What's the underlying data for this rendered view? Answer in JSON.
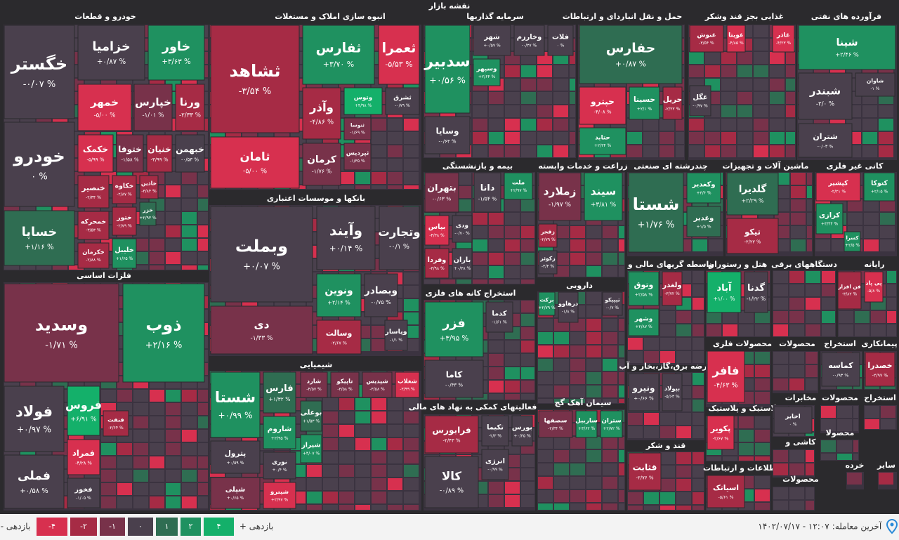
{
  "header": {
    "title": "نقشه بازار"
  },
  "sectors": [
    {
      "title": "خودرو و قطعات",
      "tiles": [
        {
          "name": "خگستر",
          "change": "-۰/۰۷ %"
        },
        {
          "name": "خودرو",
          "change": "۰ %"
        },
        {
          "name": "خساپا",
          "change": "+۱/۱۶ %"
        },
        {
          "name": "خزامیا",
          "change": "+۰/۸۷ %"
        },
        {
          "name": "خاور",
          "change": "+۳/۶۳ %"
        },
        {
          "name": "خمهر",
          "change": "-۵/۰۰ %"
        },
        {
          "name": "خپارس",
          "change": "-۱/۰۱ %"
        },
        {
          "name": "ورنا",
          "change": "-۲/۳۳ %"
        },
        {
          "name": "خکمک",
          "change": "-۵/۹۹ %"
        },
        {
          "name": "ختوقا",
          "change": "-۱/۵۸ %"
        },
        {
          "name": "خنیان",
          "change": "-۳/۹۹ %"
        },
        {
          "name": "خبهمن",
          "change": "-۰/۵۳ %"
        },
        {
          "name": "خنصیر",
          "change": "-۲/۳۴ %"
        },
        {
          "name": "خکاوه",
          "change": "-۲/۸۷ %"
        },
        {
          "name": "خاذین",
          "change": "-۳/۸۴ %"
        },
        {
          "name": "خمحرکه",
          "change": "-۳/۵۳ %"
        },
        {
          "name": "ختور",
          "change": "-۲/۷۹ %"
        },
        {
          "name": "خزر",
          "change": "+۲/۹۳ %"
        },
        {
          "name": "خکرمان",
          "change": "-۲/۸۸ %"
        },
        {
          "name": "خلیبل",
          "change": "+۱/۶۵ %"
        }
      ]
    },
    {
      "title": "فلزات اساسی",
      "tiles": [
        {
          "name": "وسدید",
          "change": "-۱/۷۱ %"
        },
        {
          "name": "ذوب",
          "change": "+۲/۱۶ %"
        },
        {
          "name": "فولاد",
          "change": "+۰/۹۷ %"
        },
        {
          "name": "فملی",
          "change": "+۰/۵۸ %"
        },
        {
          "name": "فروس",
          "change": "+۶/۹۱ %"
        },
        {
          "name": "فنفت",
          "change": "-۲/۶۴ %"
        },
        {
          "name": "فمراد",
          "change": "-۴/۲۸ %"
        },
        {
          "name": "فخوز",
          "change": "-۱/۰۵ %"
        }
      ]
    },
    {
      "title": "انبوه سازی املاک و مستغلات",
      "tiles": [
        {
          "name": "ثشاهد",
          "change": "-۳/۵۴ %"
        },
        {
          "name": "ثامان",
          "change": "-۵/۰۰ %"
        },
        {
          "name": "ثفارس",
          "change": "+۳/۷۰ %"
        },
        {
          "name": "ثعمرا",
          "change": "-۵/۵۳ %"
        },
        {
          "name": "وآذر",
          "change": "-۴/۸۶ %"
        },
        {
          "name": "وتوس",
          "change": "+۴/۹۸ %"
        },
        {
          "name": "ثشرق",
          "change": "-۰/۷۹ %"
        },
        {
          "name": "ثنوسا",
          "change": "-۱/۶۹ %"
        },
        {
          "name": "کرمان",
          "change": "-۱/۷۶ %"
        },
        {
          "name": "ثپردیس",
          "change": "-۱/۳۵ %"
        }
      ]
    },
    {
      "title": "بانکها و موسسات اعتباری",
      "tiles": [
        {
          "name": "وبملت",
          "change": "+۰/۰۷ %"
        },
        {
          "name": "دی",
          "change": "-۱/۳۳ %"
        },
        {
          "name": "وآیند",
          "change": "+۰/۱۴ %"
        },
        {
          "name": "وتجارت",
          "change": "-۰/۱ %"
        },
        {
          "name": "ونوین",
          "change": "+۲/۱۴ %"
        },
        {
          "name": "وبصادر",
          "change": "-۰/۷۵ %"
        },
        {
          "name": "وسالت",
          "change": "-۲/۶۷ %"
        },
        {
          "name": "وپاسار",
          "change": "-۱/۱ %"
        }
      ]
    },
    {
      "title": "شیمیایی",
      "tiles": [
        {
          "name": "شستا",
          "change": "+۰/۹۹ %"
        },
        {
          "name": "پترول",
          "change": "+۰/۵۹ %"
        },
        {
          "name": "شپلی",
          "change": "+۰/۶۵ %"
        },
        {
          "name": "فارس",
          "change": "+۱/۳۲ %"
        },
        {
          "name": "شاروم",
          "change": "+۲/۹۵ %"
        },
        {
          "name": "نوری",
          "change": "+۰/۴ %"
        },
        {
          "name": "شپترو",
          "change": "+۲/۹۷ %"
        },
        {
          "name": "شارد",
          "change": "-۴/۵۷ %"
        },
        {
          "name": "تاپیکو",
          "change": "-۳/۵۸ %"
        },
        {
          "name": "شپدیس",
          "change": "-۳/۵۸ %"
        },
        {
          "name": "شغلاب",
          "change": "-۳/۹۹ %"
        },
        {
          "name": "بوعلی",
          "change": "+۱/۵۳ %"
        },
        {
          "name": "شیراز",
          "change": "+۴/۰۷ %"
        }
      ]
    },
    {
      "title": "سرمایه گذاریها",
      "tiles": [
        {
          "name": "سدبیر",
          "change": "+۰/۵۶ %"
        },
        {
          "name": "شهر",
          "change": "+۰/۵۷ %"
        },
        {
          "name": "وخارزم",
          "change": "-۰/۳۷ %"
        },
        {
          "name": "فلات",
          "change": "۰ %"
        },
        {
          "name": "وسپهر",
          "change": "+۲/۶۴ %"
        },
        {
          "name": "وسایا",
          "change": "-۰/۶۴ %"
        }
      ]
    },
    {
      "title": "بیمه و بازنشستگی",
      "tiles": [
        {
          "name": "بتهران",
          "change": "-۰/۶۳ %"
        },
        {
          "name": "دانا",
          "change": "-۱/۵۴ %"
        },
        {
          "name": "ملت",
          "change": "+۲/۹۷ %"
        },
        {
          "name": "بپاس",
          "change": "-۴/۳۸ %"
        },
        {
          "name": "ودی",
          "change": "-۰/۷۰ %"
        },
        {
          "name": "وفردا",
          "change": "-۳/۹۸ %"
        },
        {
          "name": "باران",
          "change": "+۰/۳۸ %"
        }
      ]
    },
    {
      "title": "استخراج کانه های فلزی",
      "tiles": [
        {
          "name": "فزر",
          "change": "+۳/۹۵ %"
        },
        {
          "name": "کدما",
          "change": "-۱/۶۱ %"
        },
        {
          "name": "کاما",
          "change": "-۰/۴۳ %"
        }
      ]
    },
    {
      "title": "فعالیتهای کمکی به نهاد های مالی",
      "tiles": [
        {
          "name": "فرابورس",
          "change": "-۲/۴۳ %"
        },
        {
          "name": "تکیما",
          "change": "-۲/۳ %"
        },
        {
          "name": "بورس",
          "change": "+۰/۳۵ %"
        },
        {
          "name": "انرژی",
          "change": "-۰/۹۹ %"
        },
        {
          "name": "کالا",
          "change": "-۰/۸۹ %"
        }
      ]
    },
    {
      "title": "حمل و نقل انباردای و ارتباطات",
      "tiles": [
        {
          "name": "حفارس",
          "change": "+۰/۸۷ %"
        },
        {
          "name": "حپترو",
          "change": "-۴/۰۸ %"
        },
        {
          "name": "حسینا",
          "change": "+۲/۱ %"
        },
        {
          "name": "حریل",
          "change": "-۲/۲۲ %"
        },
        {
          "name": "حتاید",
          "change": "+۲/۳۴ %"
        }
      ]
    },
    {
      "title": "زراعت و خدمات وابسته",
      "tiles": [
        {
          "name": "زملارد",
          "change": "-۱/۹۷ %"
        },
        {
          "name": "سیند",
          "change": "+۳/۸۱ %"
        },
        {
          "name": "زفجر",
          "change": "-۲/۷۹ %"
        },
        {
          "name": "زکوثر",
          "change": "-۳/۴ %"
        }
      ]
    },
    {
      "title": "دارویی",
      "tiles": [
        {
          "name": "برکت",
          "change": "+۲/۷۹ %"
        },
        {
          "name": "درهاوو",
          "change": "-۱/۸ %"
        },
        {
          "name": "تیپیکو",
          "change": "-۰/۷ %"
        }
      ]
    },
    {
      "title": "سیمان آهک گچ",
      "tiles": [
        {
          "name": "سصفها",
          "change": "-۲/۳۴ %"
        },
        {
          "name": "ساربیل",
          "change": "+۳/۶۲ %"
        },
        {
          "name": "ستران",
          "change": "+۲/۷۲ %"
        }
      ]
    },
    {
      "title": "چندرشته ای صنعتی",
      "tiles": [
        {
          "name": "شستا",
          "change": "+۱/۷۶ %"
        },
        {
          "name": "وکغدیر",
          "change": "+۳/۶ %"
        },
        {
          "name": "وغدیر",
          "change": "+۱/۵ %"
        }
      ]
    },
    {
      "title": "واسطه گریهای مالی و",
      "tiles": [
        {
          "name": "وتوق",
          "change": "+۲/۵۸ %"
        },
        {
          "name": "ولغدر",
          "change": "-۳/۷۲ %"
        },
        {
          "name": "وشهر",
          "change": "+۲/۸۷ %"
        }
      ]
    },
    {
      "title": "عرضه برق،گاز،بخار و آب",
      "tiles": [
        {
          "name": "ونیرو",
          "change": "+۰/۶۶ %"
        },
        {
          "name": "بپولاد",
          "change": "-۵/۶۳ %"
        }
      ]
    },
    {
      "title": "قند و شکر",
      "tiles": [
        {
          "name": "قثابت",
          "change": "-۲/۷۶ %"
        }
      ]
    },
    {
      "title": "غذایی بجز قند وشکر",
      "tiles": [
        {
          "name": "غنوش",
          "change": "-۳/۵۴ %"
        },
        {
          "name": "غویتا",
          "change": "-۴/۸۵ %"
        },
        {
          "name": "غاذر",
          "change": "-۴/۲۳ %"
        },
        {
          "name": "غگل",
          "change": "-۰/۹۷ %"
        }
      ]
    },
    {
      "title": "فرآورده های نفتی",
      "tiles": [
        {
          "name": "شپنا",
          "change": "+۲/۴۶ %"
        },
        {
          "name": "شبندر",
          "change": "-۲/۰ %"
        },
        {
          "name": "شاوان",
          "change": "-۱ %"
        },
        {
          "name": "شتران",
          "change": "-۰/۰۳ %"
        }
      ]
    },
    {
      "title": "ماشین آلات و تجهیزات",
      "tiles": [
        {
          "name": "گلدیرا",
          "change": "+۲/۲۹ %"
        },
        {
          "name": "تیکو",
          "change": "-۲/۲۲ %"
        }
      ]
    },
    {
      "title": "کانی غیر فلزی",
      "tiles": [
        {
          "name": "کپشیر",
          "change": "-۲/۲۱ %"
        },
        {
          "name": "کتوکا",
          "change": "+۲/۱۵ %"
        },
        {
          "name": "کرازی",
          "change": "+۳/۴۴ %"
        },
        {
          "name": "کسرا",
          "change": "+۲/۵ %"
        }
      ]
    },
    {
      "title": "هتل و رستوران",
      "tiles": [
        {
          "name": "آباد",
          "change": "+۱/۰۰ %"
        },
        {
          "name": "گدنا",
          "change": "-۱/۲۲ %"
        }
      ]
    },
    {
      "title": "دستگاههای برقی",
      "tiles": []
    },
    {
      "title": "رایانه",
      "tiles": [
        {
          "name": "فن افزار",
          "change": "-۳/۸۲ %"
        },
        {
          "name": "پی پاد",
          "change": "-۵/۸ %"
        }
      ]
    },
    {
      "title": "محصولات فلزی",
      "tiles": [
        {
          "name": "فافر",
          "change": "-۴/۶۳ %"
        }
      ]
    },
    {
      "title": "لاستیک و پلاستیک",
      "tiles": [
        {
          "name": "پکویر",
          "change": "-۲/۶۷ %"
        }
      ]
    },
    {
      "title": "اطلاعات و ارتباطات",
      "tiles": [
        {
          "name": "اسیاتک",
          "change": "-۵/۶۱ %"
        }
      ]
    },
    {
      "title": "پیمانکاری",
      "tiles": [
        {
          "name": "خصدرا",
          "change": "-۲/۹۷ %"
        }
      ]
    },
    {
      "title": "استخراج",
      "tiles": [
        {
          "name": "کماسه",
          "change": "-۰/۹۳ %"
        }
      ]
    },
    {
      "title": "محصولات",
      "tiles": []
    },
    {
      "title": "مخابرات",
      "tiles": [
        {
          "name": "اخابر",
          "change": "۰ %"
        }
      ]
    },
    {
      "title": "محصولات",
      "tiles": []
    },
    {
      "title": "استخراج",
      "tiles": []
    },
    {
      "title": "کاشی و",
      "tiles": []
    },
    {
      "title": "محصولات",
      "tiles": []
    },
    {
      "title": "محصولا",
      "tiles": []
    },
    {
      "title": "خرده",
      "tiles": []
    },
    {
      "title": "سایر",
      "tiles": []
    }
  ],
  "legend": {
    "negative_label": "بازدهی -",
    "positive_label": "بازدهی +",
    "steps": [
      "-۴",
      "-۲",
      "-۱",
      "۰",
      "۱",
      "۲",
      "۴"
    ]
  },
  "footer": {
    "last_trade_label": "آخرین معامله:",
    "datetime": "۱۴۰۲/۰۷/۱۷ - ۱۲:۰۷"
  }
}
